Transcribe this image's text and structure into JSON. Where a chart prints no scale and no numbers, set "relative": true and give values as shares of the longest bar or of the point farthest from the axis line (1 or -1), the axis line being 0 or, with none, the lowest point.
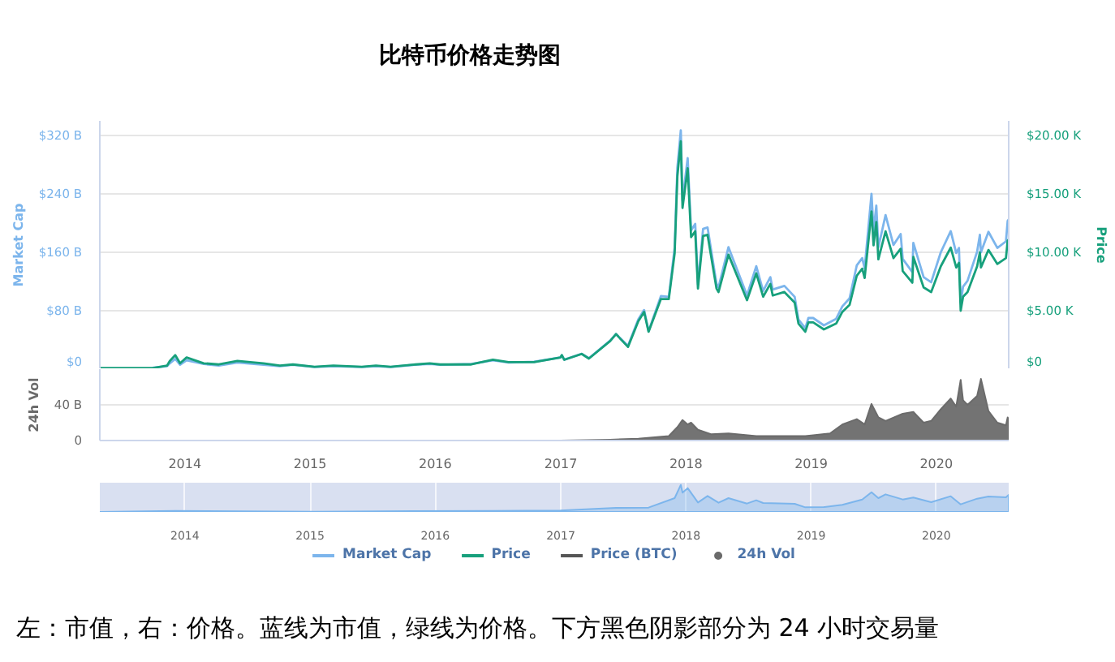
{
  "chart_data": [
    {
      "type": "line",
      "title": "比特币价格走势图",
      "annotations": [
        "左：市值，右：价格。蓝线为市值，绿线为价格。下方黑色阴影部分为 24 小时交易量"
      ],
      "ylabel": "Market Cap",
      "y2label": "Price",
      "xlim": [
        "2013-04-28",
        "2020-07-30"
      ],
      "ylim": [
        0,
        340
      ],
      "yticks": [
        {
          "value": 0,
          "label": "$0"
        },
        {
          "value": 80,
          "label": "$80 B"
        },
        {
          "value": 160,
          "label": "$160 B"
        },
        {
          "value": 240,
          "label": "$240 B"
        },
        {
          "value": 320,
          "label": "$320 B"
        }
      ],
      "y2lim": [
        0,
        21.25
      ],
      "y2ticks": [
        {
          "value": 0,
          "label": "$0"
        },
        {
          "value": 5,
          "label": "$5.00 K"
        },
        {
          "value": 10,
          "label": "$10.00 K"
        },
        {
          "value": 15,
          "label": "$15.00 K"
        },
        {
          "value": 20,
          "label": "$20.00 K"
        }
      ],
      "grid": "y",
      "legend": "bottom",
      "tick_labels": "y",
      "x": [
        "2013-04-28",
        "2013-07-05",
        "2013-10-01",
        "2013-11-10",
        "2013-11-18",
        "2013-12-04",
        "2013-12-18",
        "2014-01-06",
        "2014-02-25",
        "2014-04-10",
        "2014-06-03",
        "2014-08-18",
        "2014-10-05",
        "2014-11-12",
        "2015-01-14",
        "2015-03-10",
        "2015-06-01",
        "2015-07-12",
        "2015-08-24",
        "2015-11-04",
        "2015-12-16",
        "2016-01-15",
        "2016-04-15",
        "2016-06-17",
        "2016-08-02",
        "2016-10-15",
        "2016-12-31",
        "2017-01-04",
        "2017-01-11",
        "2017-03-03",
        "2017-03-24",
        "2017-05-25",
        "2017-06-11",
        "2017-07-16",
        "2017-08-15",
        "2017-09-01",
        "2017-09-14",
        "2017-10-20",
        "2017-11-12",
        "2017-11-29",
        "2017-12-07",
        "2017-12-17",
        "2017-12-22",
        "2018-01-06",
        "2018-01-16",
        "2018-01-28",
        "2018-02-05",
        "2018-02-20",
        "2018-03-05",
        "2018-03-31",
        "2018-04-06",
        "2018-05-05",
        "2018-06-28",
        "2018-07-25",
        "2018-08-14",
        "2018-09-04",
        "2018-09-11",
        "2018-10-15",
        "2018-11-14",
        "2018-11-25",
        "2018-12-15",
        "2018-12-24",
        "2019-01-07",
        "2019-02-07",
        "2019-03-15",
        "2019-04-02",
        "2019-04-23",
        "2019-05-14",
        "2019-05-30",
        "2019-06-06",
        "2019-06-26",
        "2019-07-02",
        "2019-07-10",
        "2019-07-16",
        "2019-08-06",
        "2019-08-29",
        "2019-09-19",
        "2019-09-25",
        "2019-10-23",
        "2019-10-26",
        "2019-11-25",
        "2019-12-17",
        "2020-01-14",
        "2020-02-12",
        "2020-02-28",
        "2020-03-07",
        "2020-03-12",
        "2020-03-19",
        "2020-04-01",
        "2020-04-29",
        "2020-05-07",
        "2020-05-10",
        "2020-06-01",
        "2020-06-27",
        "2020-07-22",
        "2020-07-27",
        "2020-07-30"
      ],
      "series": [
        {
          "name": "Market Cap",
          "color": "#7cb5ec",
          "axis": "y",
          "values": [
            null,
            null,
            2,
            4,
            8,
            14,
            6,
            12,
            7,
            5,
            9,
            6,
            4,
            6,
            3,
            4,
            3,
            4,
            3,
            6,
            7,
            6,
            7,
            12,
            9,
            10,
            16,
            19,
            13,
            21,
            15,
            39,
            48,
            32,
            68,
            81,
            52,
            100,
            99,
            166,
            276,
            327,
            231,
            289,
            190,
            199,
            116,
            192,
            194,
            117,
            112,
            167,
            101,
            141,
            107,
            126,
            109,
            114,
            99,
            68,
            56,
            70,
            70,
            60,
            69,
            86,
            97,
            142,
            152,
            138,
            240,
            189,
            224,
            167,
            211,
            170,
            185,
            151,
            133,
            173,
            126,
            119,
            160,
            189,
            159,
            166,
            91,
            113,
            121,
            161,
            184,
            160,
            188,
            166,
            175,
            203,
            205
          ]
        },
        {
          "name": "Price",
          "color": "#17a07c",
          "axis": "y2",
          "values": [
            0.1,
            0.1,
            0.1,
            0.3,
            0.7,
            1.2,
            0.5,
            1.0,
            0.5,
            0.4,
            0.7,
            0.5,
            0.3,
            0.4,
            0.2,
            0.3,
            0.2,
            0.3,
            0.2,
            0.4,
            0.5,
            0.4,
            0.4,
            0.8,
            0.6,
            0.6,
            1.0,
            1.2,
            0.8,
            1.3,
            0.9,
            2.4,
            3.0,
            1.9,
            4.1,
            4.9,
            3.2,
            6.0,
            6.0,
            9.9,
            16.5,
            19.5,
            13.8,
            17.2,
            11.3,
            11.8,
            6.9,
            11.4,
            11.5,
            6.9,
            6.6,
            9.8,
            5.9,
            8.2,
            6.2,
            7.3,
            6.3,
            6.6,
            5.7,
            3.9,
            3.2,
            4.0,
            4.0,
            3.4,
            3.9,
            4.9,
            5.5,
            8.0,
            8.6,
            7.8,
            13.5,
            10.6,
            12.6,
            9.4,
            11.8,
            9.5,
            10.3,
            8.4,
            7.4,
            9.6,
            7.0,
            6.6,
            8.8,
            10.4,
            8.7,
            9.1,
            5.0,
            6.2,
            6.6,
            8.8,
            10.0,
            8.7,
            10.2,
            9.0,
            9.5,
            11.0,
            11.1
          ]
        },
        {
          "name": "Price (BTC)",
          "color": "#555555",
          "values": [
            null,
            null,
            null,
            null,
            null,
            null,
            null,
            null,
            null,
            null,
            null,
            null,
            null,
            null,
            null,
            null,
            null,
            null,
            null,
            null,
            null,
            null,
            null,
            null,
            null,
            null,
            null,
            null,
            null,
            null,
            null,
            null,
            null,
            null,
            null,
            null,
            null,
            null,
            null,
            null,
            null,
            null,
            null,
            null,
            null,
            null,
            null,
            null,
            null,
            null,
            null,
            null,
            null,
            null,
            null,
            null,
            null,
            null,
            null,
            null,
            null,
            null,
            null,
            null,
            null,
            null,
            null,
            null,
            null,
            null,
            null,
            null,
            null,
            null,
            null,
            null,
            null,
            null,
            null,
            null,
            null,
            null,
            null,
            null,
            null,
            null,
            null,
            null,
            null,
            null,
            null,
            null,
            null,
            null,
            null,
            null,
            null
          ]
        }
      ]
    },
    {
      "type": "area",
      "ylabel": "24h Vol",
      "xlim": [
        "2013-04-28",
        "2020-07-30"
      ],
      "xticks": [
        {
          "value": "2014-01-01",
          "label": "2014"
        },
        {
          "value": "2015-01-01",
          "label": "2015"
        },
        {
          "value": "2016-01-01",
          "label": "2016"
        },
        {
          "value": "2017-01-01",
          "label": "2017"
        },
        {
          "value": "2018-01-01",
          "label": "2018"
        },
        {
          "value": "2019-01-01",
          "label": "2019"
        },
        {
          "value": "2020-01-01",
          "label": "2020"
        }
      ],
      "ylim": [
        0,
        80
      ],
      "yticks": [
        0,
        {
          "value": 40,
          "label": "40 B"
        }
      ],
      "grid": "y",
      "legend": "bottom",
      "x": [
        "2013-04-28",
        "2016-12-31",
        "2017-05-25",
        "2017-08-15",
        "2017-11-12",
        "2017-12-07",
        "2017-12-22",
        "2018-01-06",
        "2018-01-16",
        "2018-02-05",
        "2018-03-15",
        "2018-05-05",
        "2018-07-25",
        "2018-11-25",
        "2018-12-15",
        "2019-01-07",
        "2019-02-25",
        "2019-04-02",
        "2019-05-14",
        "2019-06-06",
        "2019-06-26",
        "2019-07-16",
        "2019-08-06",
        "2019-09-25",
        "2019-10-26",
        "2019-11-25",
        "2019-12-17",
        "2020-01-14",
        "2020-02-12",
        "2020-02-28",
        "2020-03-12",
        "2020-03-19",
        "2020-04-01",
        "2020-04-29",
        "2020-05-10",
        "2020-06-01",
        "2020-06-27",
        "2020-07-22",
        "2020-07-27",
        "2020-07-30"
      ],
      "series": [
        {
          "name": "24h Vol",
          "color": "#6b6b6b",
          "values": [
            0,
            0,
            1,
            2,
            5,
            15,
            23,
            18,
            20,
            12,
            7,
            8,
            5,
            5,
            5,
            6,
            8,
            18,
            24,
            18,
            41,
            26,
            22,
            30,
            32,
            20,
            22,
            35,
            47,
            38,
            68,
            45,
            40,
            50,
            69,
            33,
            20,
            17,
            26,
            23
          ]
        }
      ]
    },
    {
      "type": "area",
      "relative": true,
      "color": "#7cb5ec",
      "xlim": [
        "2013-04-28",
        "2020-07-30"
      ],
      "xticks": [
        {
          "value": "2014-01-01",
          "label": "2014"
        },
        {
          "value": "2015-01-01",
          "label": "2015"
        },
        {
          "value": "2016-01-01",
          "label": "2016"
        },
        {
          "value": "2017-01-01",
          "label": "2017"
        },
        {
          "value": "2018-01-01",
          "label": "2018"
        },
        {
          "value": "2019-01-01",
          "label": "2019"
        },
        {
          "value": "2020-01-01",
          "label": "2020"
        }
      ],
      "grid": "x",
      "tick_labels": "x",
      "x": [
        "2013-04-28",
        "2013-12-04",
        "2015-01-14",
        "2016-06-17",
        "2016-12-31",
        "2017-06-11",
        "2017-09-14",
        "2017-11-29",
        "2017-12-17",
        "2017-12-22",
        "2018-01-06",
        "2018-02-05",
        "2018-03-05",
        "2018-04-06",
        "2018-05-05",
        "2018-06-28",
        "2018-07-25",
        "2018-08-14",
        "2018-11-14",
        "2018-12-15",
        "2019-02-07",
        "2019-04-02",
        "2019-05-30",
        "2019-06-26",
        "2019-07-16",
        "2019-08-06",
        "2019-09-25",
        "2019-10-26",
        "2019-12-17",
        "2020-02-12",
        "2020-03-12",
        "2020-04-29",
        "2020-06-01",
        "2020-07-22",
        "2020-07-30"
      ],
      "values": [
        0.0,
        0.04,
        0.01,
        0.04,
        0.05,
        0.15,
        0.16,
        0.51,
        1.0,
        0.71,
        0.88,
        0.35,
        0.59,
        0.34,
        0.51,
        0.31,
        0.43,
        0.33,
        0.3,
        0.17,
        0.18,
        0.26,
        0.46,
        0.73,
        0.51,
        0.65,
        0.46,
        0.53,
        0.36,
        0.58,
        0.28,
        0.49,
        0.57,
        0.54,
        0.63
      ]
    }
  ]
}
